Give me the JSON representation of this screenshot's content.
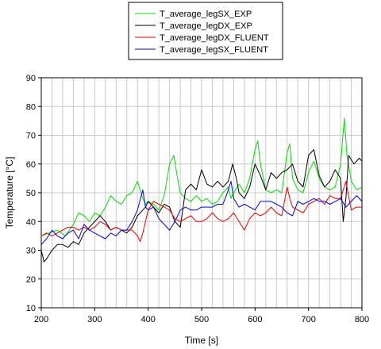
{
  "chart_data": {
    "type": "line",
    "title": "",
    "xlabel": "Time [s]",
    "ylabel": "Temperature [°C]",
    "xlim": [
      200,
      800
    ],
    "ylim": [
      10,
      90
    ],
    "xticks": [
      200,
      300,
      400,
      500,
      600,
      700,
      800
    ],
    "yticks": [
      10,
      20,
      30,
      40,
      50,
      60,
      70,
      80,
      90
    ],
    "grid": true,
    "legend_placement": "top-center",
    "series": [
      {
        "name": "T_average_legSX_EXP",
        "color": "#00e000",
        "x": [
          200,
          215,
          230,
          245,
          260,
          270,
          280,
          290,
          300,
          310,
          320,
          330,
          340,
          350,
          360,
          370,
          380,
          390,
          395,
          400,
          410,
          420,
          430,
          440,
          448,
          455,
          460,
          470,
          480,
          490,
          500,
          510,
          520,
          530,
          540,
          550,
          555,
          560,
          570,
          580,
          590,
          600,
          605,
          610,
          620,
          630,
          640,
          650,
          660,
          665,
          670,
          680,
          690,
          700,
          710,
          715,
          720,
          730,
          740,
          750,
          760,
          767,
          772,
          780,
          790,
          800
        ],
        "y": [
          35,
          36,
          37,
          35,
          39,
          43,
          42,
          40,
          43,
          42,
          45,
          49,
          47,
          46,
          49,
          50,
          54,
          48,
          46,
          47,
          46,
          44,
          49,
          60,
          63,
          55,
          50,
          48,
          47,
          49,
          47,
          48,
          46,
          47,
          50,
          52,
          48,
          50,
          53,
          50,
          55,
          65,
          68,
          60,
          51,
          50,
          51,
          50,
          64,
          67,
          55,
          51,
          50,
          57,
          61,
          58,
          55,
          52,
          51,
          52,
          60,
          76,
          63,
          54,
          51,
          52
        ]
      },
      {
        "name": "T_average_legDX_EXP",
        "color": "#000000",
        "x": [
          200,
          205,
          210,
          220,
          230,
          240,
          250,
          260,
          270,
          280,
          290,
          300,
          310,
          320,
          330,
          340,
          350,
          360,
          370,
          380,
          390,
          395,
          400,
          410,
          420,
          430,
          440,
          450,
          460,
          470,
          480,
          490,
          500,
          510,
          520,
          530,
          540,
          550,
          558,
          565,
          570,
          580,
          590,
          600,
          610,
          620,
          630,
          640,
          650,
          660,
          670,
          680,
          690,
          700,
          710,
          720,
          730,
          740,
          750,
          760,
          765,
          770,
          775,
          785,
          795,
          800
        ],
        "y": [
          30,
          26,
          27,
          30,
          32,
          32,
          31,
          33,
          32,
          36,
          38,
          40,
          42,
          40,
          37,
          38,
          37,
          36,
          38,
          42,
          44,
          45,
          47,
          45,
          43,
          46,
          45,
          40,
          38,
          51,
          53,
          51,
          58,
          53,
          52,
          54,
          52,
          54,
          60,
          55,
          50,
          48,
          52,
          60,
          56,
          51,
          57,
          55,
          57,
          58,
          60,
          54,
          52,
          63,
          65,
          56,
          52,
          54,
          58,
          55,
          40,
          48,
          63,
          60,
          62,
          61
        ]
      },
      {
        "name": "T_average_legDX_FLUENT",
        "color": "#ee0000",
        "x": [
          200,
          210,
          220,
          230,
          240,
          250,
          260,
          270,
          280,
          290,
          300,
          310,
          320,
          330,
          340,
          350,
          360,
          370,
          380,
          385,
          390,
          395,
          400,
          410,
          420,
          430,
          440,
          450,
          460,
          470,
          480,
          490,
          500,
          510,
          520,
          530,
          540,
          550,
          560,
          570,
          580,
          590,
          600,
          610,
          620,
          630,
          640,
          650,
          660,
          665,
          670,
          680,
          690,
          700,
          710,
          720,
          730,
          740,
          750,
          760,
          770,
          780,
          790,
          800
        ],
        "y": [
          35,
          36,
          35,
          36,
          37,
          38,
          38,
          37,
          38,
          37,
          38,
          40,
          39,
          37,
          38,
          37,
          37,
          37,
          35,
          33,
          36,
          40,
          44,
          47,
          46,
          45,
          44,
          41,
          40,
          41,
          42,
          40,
          40,
          41,
          43,
          41,
          40,
          41,
          43,
          40,
          37,
          41,
          43,
          42,
          43,
          45,
          43,
          42,
          52,
          48,
          45,
          44,
          43,
          46,
          47,
          48,
          46,
          49,
          48,
          48,
          54,
          44,
          45,
          45
        ]
      },
      {
        "name": "T_average_legSX_FLUENT",
        "color": "#0000ee",
        "x": [
          200,
          210,
          220,
          230,
          240,
          250,
          260,
          270,
          280,
          290,
          300,
          310,
          320,
          330,
          340,
          350,
          360,
          370,
          380,
          390,
          395,
          400,
          410,
          420,
          430,
          440,
          450,
          460,
          470,
          480,
          490,
          500,
          510,
          520,
          530,
          540,
          550,
          555,
          560,
          570,
          580,
          590,
          600,
          610,
          620,
          630,
          640,
          650,
          660,
          670,
          680,
          690,
          700,
          710,
          720,
          730,
          740,
          750,
          760,
          770,
          780,
          790,
          800
        ],
        "y": [
          32,
          34,
          37,
          35,
          34,
          36,
          37,
          34,
          39,
          37,
          36,
          35,
          34,
          36,
          35,
          37,
          37,
          40,
          44,
          51,
          45,
          44,
          45,
          41,
          39,
          37,
          40,
          44,
          45,
          44,
          44,
          45,
          45,
          45,
          46,
          46,
          51,
          54,
          48,
          45,
          46,
          45,
          44,
          47,
          47,
          47,
          46,
          45,
          43,
          42,
          47,
          46,
          47,
          48,
          47,
          47,
          46,
          47,
          48,
          45,
          47,
          49,
          47
        ]
      }
    ]
  }
}
